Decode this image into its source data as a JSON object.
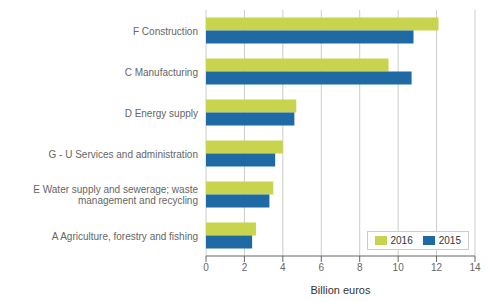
{
  "chart_data": {
    "type": "bar",
    "orientation": "horizontal",
    "categories": [
      "A Agriculture, forestry and fishing",
      "E Water supply and sewerage; waste\nmanagement and recycling",
      "G - U Services and administration",
      "D Energy supply",
      "C Manufacturing",
      "F Construction"
    ],
    "series": [
      {
        "name": "2016",
        "color": "#c8d44e",
        "values": [
          2.6,
          3.5,
          4.0,
          4.7,
          9.5,
          12.1
        ]
      },
      {
        "name": "2015",
        "color": "#1f6aa5",
        "values": [
          2.4,
          3.3,
          3.6,
          4.6,
          10.7,
          10.8
        ]
      }
    ],
    "xlabel": "Billion euros",
    "xlim": [
      0,
      14
    ],
    "xticks": [
      0,
      2,
      4,
      6,
      8,
      10,
      12,
      14
    ],
    "grid": "x",
    "legend": "lower right"
  }
}
